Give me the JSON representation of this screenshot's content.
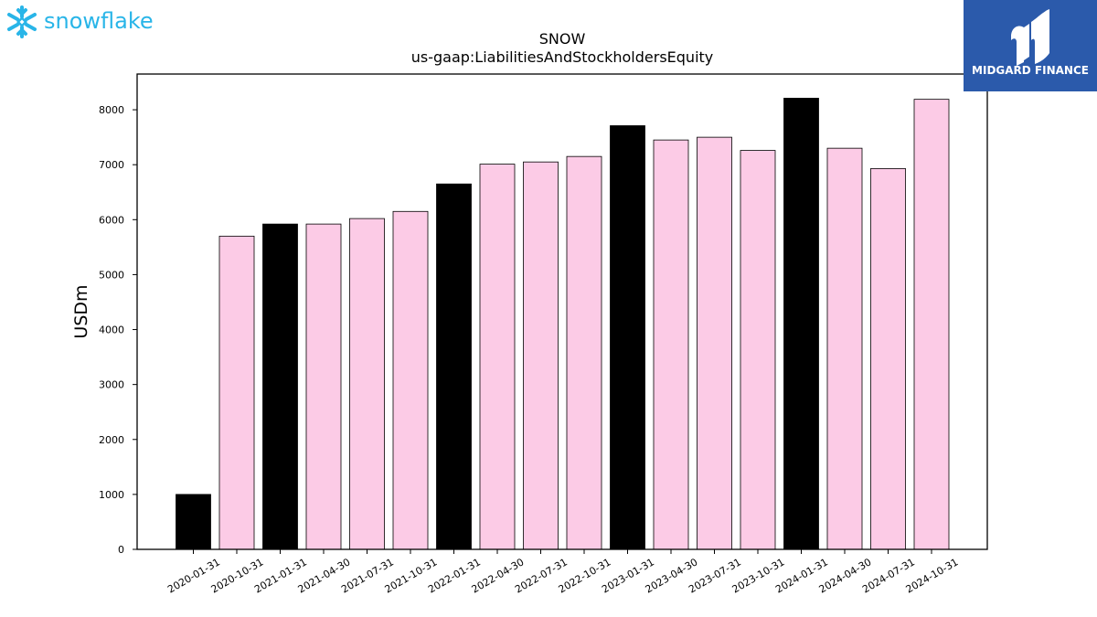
{
  "branding": {
    "left_logo_text": "snowflake",
    "right_logo_text": "MIDGARD FINANCE",
    "colors": {
      "snowflake_blue": "#29b5e8",
      "midgard_blue": "#2b5aab"
    }
  },
  "chart_data": {
    "type": "bar",
    "title": "SNOW",
    "subtitle": "us-gaap:LiabilitiesAndStockholdersEquity",
    "xlabel": "",
    "ylabel": "USDm",
    "ylim": [
      0,
      8650
    ],
    "yticks": [
      0,
      1000,
      2000,
      3000,
      4000,
      5000,
      6000,
      7000,
      8000
    ],
    "grid": false,
    "categories": [
      "2020-01-31",
      "2020-10-31",
      "2021-01-31",
      "2021-04-30",
      "2021-07-31",
      "2021-10-31",
      "2022-01-31",
      "2022-04-30",
      "2022-07-31",
      "2022-10-31",
      "2023-01-31",
      "2023-04-30",
      "2023-07-31",
      "2023-10-31",
      "2024-01-31",
      "2024-04-30",
      "2024-07-31",
      "2024-10-31"
    ],
    "values": [
      1000,
      5700,
      5920,
      5920,
      6020,
      6150,
      6650,
      7010,
      7050,
      7150,
      7710,
      7450,
      7500,
      7260,
      8210,
      7300,
      6930,
      8190
    ],
    "bar_colors": [
      "#000000",
      "#fccbe6",
      "#000000",
      "#fccbe6",
      "#fccbe6",
      "#fccbe6",
      "#000000",
      "#fccbe6",
      "#fccbe6",
      "#fccbe6",
      "#000000",
      "#fccbe6",
      "#fccbe6",
      "#fccbe6",
      "#000000",
      "#fccbe6",
      "#fccbe6",
      "#fccbe6"
    ]
  }
}
